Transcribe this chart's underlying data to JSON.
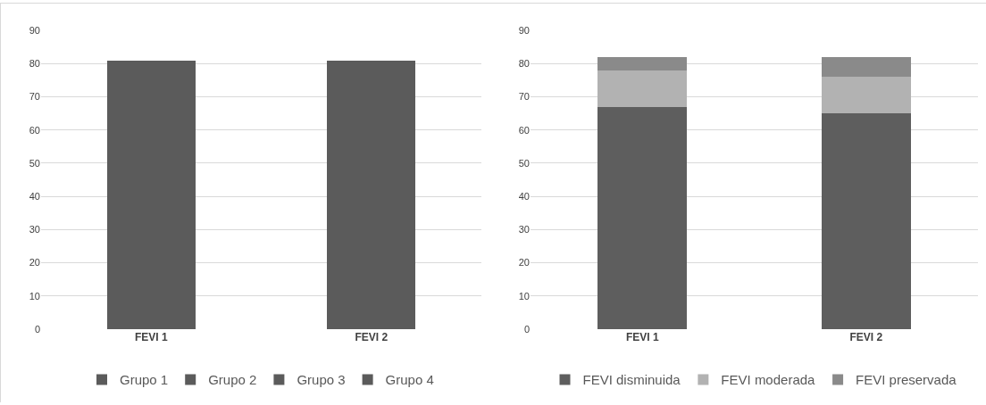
{
  "chart_data": [
    {
      "type": "bar",
      "stacked": true,
      "categories": [
        "FEVI 1",
        "FEVI 2"
      ],
      "ylim": [
        0,
        90
      ],
      "yticks": [
        0,
        10,
        20,
        30,
        40,
        50,
        60,
        70,
        80,
        90
      ],
      "grid": "y",
      "legend": "bottom",
      "series": [
        {
          "name": "Grupo 1",
          "color": "#5b5b5b",
          "values": [
            34,
            27
          ]
        },
        {
          "name": "Grupo 2",
          "color": "#5b5b5b",
          "values": [
            11,
            14
          ]
        },
        {
          "name": "Grupo 3",
          "color": "#5b5b5b",
          "values": [
            17,
            21
          ]
        },
        {
          "name": "Grupo 4",
          "color": "#5b5b5b",
          "values": [
            19,
            19
          ]
        }
      ]
    },
    {
      "type": "bar",
      "stacked": true,
      "categories": [
        "FEVI 1",
        "FEVI 2"
      ],
      "ylim": [
        0,
        90
      ],
      "yticks": [
        0,
        10,
        20,
        30,
        40,
        50,
        60,
        70,
        80,
        90
      ],
      "grid": "y",
      "legend": "bottom",
      "series": [
        {
          "name": "FEVI disminuida",
          "color": "#5e5e5e",
          "values": [
            67,
            65
          ]
        },
        {
          "name": "FEVI moderada",
          "color": "#b2b2b2",
          "values": [
            11,
            11
          ]
        },
        {
          "name": "FEVI preservada",
          "color": "#8a8a8a",
          "values": [
            4,
            6
          ]
        }
      ]
    }
  ]
}
